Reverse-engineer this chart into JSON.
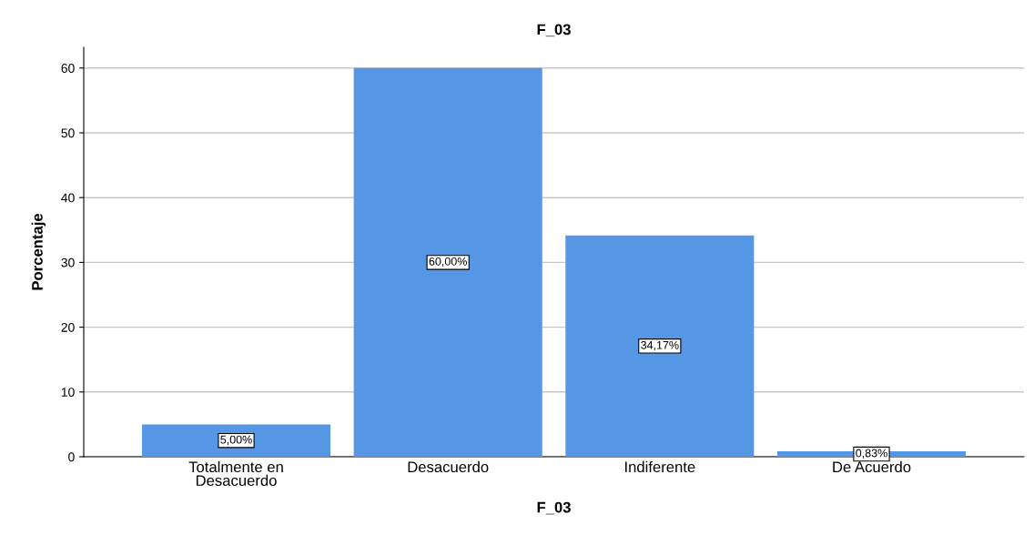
{
  "chart_data": {
    "type": "bar",
    "title": "F_03",
    "xlabel": "F_03",
    "ylabel": "Porcentaje",
    "categories": [
      "Totalmente en\nDesacuerdo",
      "Desacuerdo",
      "Indiferente",
      "De Acuerdo"
    ],
    "values": [
      5.0,
      60.0,
      34.17,
      0.83
    ],
    "value_labels": [
      "5,00%",
      "60,00%",
      "34,17%",
      "0,83%"
    ],
    "color": "#5596e5",
    "ylim": [
      0,
      63.2
    ],
    "yticks": [
      0,
      10,
      20,
      30,
      40,
      50,
      60
    ],
    "grid": "y"
  }
}
